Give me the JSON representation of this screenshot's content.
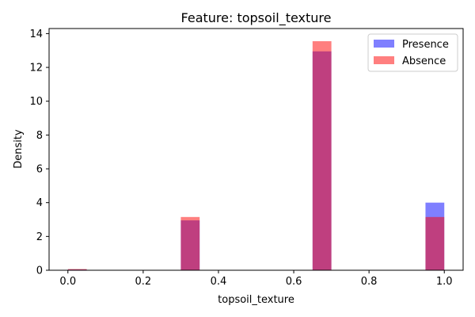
{
  "chart_data": {
    "type": "bar",
    "title": "Feature: topsoil_texture",
    "xlabel": "topsoil_texture",
    "ylabel": "Density",
    "xlim": [
      -0.05,
      1.05
    ],
    "ylim": [
      0,
      14.3
    ],
    "xticks": [
      "0.0",
      "0.2",
      "0.4",
      "0.6",
      "0.8",
      "1.0"
    ],
    "yticks": [
      "0",
      "2",
      "4",
      "6",
      "8",
      "10",
      "12",
      "14"
    ],
    "bin_width": 0.05,
    "grid": false,
    "legend_position": "top-right",
    "series": [
      {
        "name": "Presence",
        "color": "#0000ff",
        "opacity": 0.5,
        "bins": [
          {
            "x0": 0.0,
            "x1": 0.05,
            "value": 0.05
          },
          {
            "x0": 0.3,
            "x1": 0.35,
            "value": 2.95
          },
          {
            "x0": 0.65,
            "x1": 0.7,
            "value": 12.95
          },
          {
            "x0": 0.95,
            "x1": 1.0,
            "value": 4.0
          }
        ]
      },
      {
        "name": "Absence",
        "color": "#ff0000",
        "opacity": 0.5,
        "bins": [
          {
            "x0": 0.0,
            "x1": 0.05,
            "value": 0.07
          },
          {
            "x0": 0.3,
            "x1": 0.35,
            "value": 3.15
          },
          {
            "x0": 0.65,
            "x1": 0.7,
            "value": 13.55
          },
          {
            "x0": 0.95,
            "x1": 1.0,
            "value": 3.15
          }
        ]
      }
    ]
  }
}
